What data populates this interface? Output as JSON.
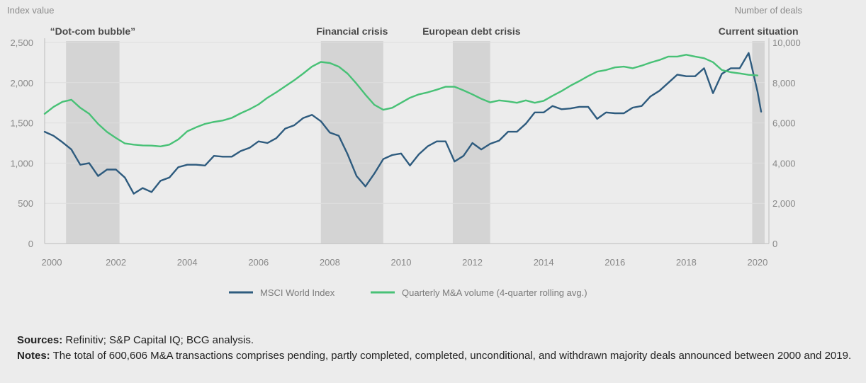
{
  "chart_data": {
    "type": "line",
    "left_axis_title": "Index value",
    "right_axis_title": "Number of deals",
    "x_range": [
      2000,
      2020.2
    ],
    "x_ticks": [
      2000,
      2002,
      2004,
      2006,
      2008,
      2010,
      2012,
      2014,
      2016,
      2018,
      2020
    ],
    "y_left": {
      "range": [
        0,
        2500
      ],
      "ticks": [
        0,
        500,
        1000,
        1500,
        2000,
        2500
      ],
      "tick_labels": [
        "0",
        "500",
        "1,000",
        "1,500",
        "2,000",
        "2,500"
      ]
    },
    "y_right": {
      "range": [
        0,
        10000
      ],
      "ticks": [
        0,
        2000,
        4000,
        6000,
        8000,
        10000
      ],
      "tick_labels": [
        "0",
        "2,000",
        "4,000",
        "6,000",
        "8,000",
        "10,000"
      ]
    },
    "grid": "horizontal",
    "legend_position": "bottom-center",
    "shaded_periods": [
      {
        "label": "“Dot-com bubble”",
        "start": 2000.6,
        "end": 2002.1
      },
      {
        "label": "Financial crisis",
        "start": 2007.75,
        "end": 2009.5
      },
      {
        "label": "European debt crisis",
        "start": 2011.45,
        "end": 2012.5
      },
      {
        "label": "Current situation",
        "start": 2019.85,
        "end": 2020.2
      }
    ],
    "series": [
      {
        "name": "MSCI World Index",
        "axis": "left",
        "color": "#2e5b7e",
        "x": [
          2000.0,
          2000.25,
          2000.5,
          2000.75,
          2001.0,
          2001.25,
          2001.5,
          2001.75,
          2002.0,
          2002.25,
          2002.5,
          2002.75,
          2003.0,
          2003.25,
          2003.5,
          2003.75,
          2004.0,
          2004.25,
          2004.5,
          2004.75,
          2005.0,
          2005.25,
          2005.5,
          2005.75,
          2006.0,
          2006.25,
          2006.5,
          2006.75,
          2007.0,
          2007.25,
          2007.5,
          2007.75,
          2008.0,
          2008.25,
          2008.5,
          2008.75,
          2009.0,
          2009.25,
          2009.5,
          2009.75,
          2010.0,
          2010.25,
          2010.5,
          2010.75,
          2011.0,
          2011.25,
          2011.5,
          2011.75,
          2012.0,
          2012.25,
          2012.5,
          2012.75,
          2013.0,
          2013.25,
          2013.5,
          2013.75,
          2014.0,
          2014.25,
          2014.5,
          2014.75,
          2015.0,
          2015.25,
          2015.5,
          2015.75,
          2016.0,
          2016.25,
          2016.5,
          2016.75,
          2017.0,
          2017.25,
          2017.5,
          2017.75,
          2018.0,
          2018.25,
          2018.5,
          2018.75,
          2019.0,
          2019.25,
          2019.5,
          2019.75,
          2020.0,
          2020.1
        ],
        "values": [
          1390,
          1340,
          1260,
          1170,
          980,
          1000,
          840,
          920,
          920,
          820,
          620,
          690,
          640,
          780,
          820,
          950,
          980,
          980,
          970,
          1090,
          1080,
          1080,
          1150,
          1190,
          1270,
          1250,
          1310,
          1430,
          1470,
          1560,
          1600,
          1520,
          1380,
          1340,
          1110,
          840,
          710,
          870,
          1050,
          1100,
          1120,
          970,
          1110,
          1210,
          1270,
          1270,
          1020,
          1090,
          1250,
          1170,
          1240,
          1280,
          1390,
          1390,
          1490,
          1630,
          1630,
          1710,
          1670,
          1680,
          1700,
          1700,
          1550,
          1630,
          1620,
          1620,
          1690,
          1710,
          1830,
          1900,
          2000,
          2100,
          2080,
          2080,
          2180,
          1870,
          2110,
          2180,
          2180,
          2370,
          1890,
          1640
        ]
      },
      {
        "name": "Quarterly M&A volume (4-quarter rolling avg.)",
        "axis": "right",
        "color": "#48c176",
        "x": [
          2000.0,
          2000.25,
          2000.5,
          2000.75,
          2001.0,
          2001.25,
          2001.5,
          2001.75,
          2002.0,
          2002.25,
          2002.5,
          2002.75,
          2003.0,
          2003.25,
          2003.5,
          2003.75,
          2004.0,
          2004.25,
          2004.5,
          2004.75,
          2005.0,
          2005.25,
          2005.5,
          2005.75,
          2006.0,
          2006.25,
          2006.5,
          2006.75,
          2007.0,
          2007.25,
          2007.5,
          2007.75,
          2008.0,
          2008.25,
          2008.5,
          2008.75,
          2009.0,
          2009.25,
          2009.5,
          2009.75,
          2010.0,
          2010.25,
          2010.5,
          2010.75,
          2011.0,
          2011.25,
          2011.5,
          2011.75,
          2012.0,
          2012.25,
          2012.5,
          2012.75,
          2013.0,
          2013.25,
          2013.5,
          2013.75,
          2014.0,
          2014.25,
          2014.5,
          2014.75,
          2015.0,
          2015.25,
          2015.5,
          2015.75,
          2016.0,
          2016.25,
          2016.5,
          2016.75,
          2017.0,
          2017.25,
          2017.5,
          2017.75,
          2018.0,
          2018.25,
          2018.5,
          2018.75,
          2019.0,
          2019.25,
          2019.5,
          2019.75,
          2020.0
        ],
        "values": [
          6450,
          6800,
          7050,
          7150,
          6750,
          6450,
          5950,
          5550,
          5250,
          4980,
          4920,
          4880,
          4870,
          4830,
          4920,
          5180,
          5580,
          5780,
          5950,
          6050,
          6120,
          6250,
          6480,
          6680,
          6920,
          7250,
          7520,
          7820,
          8120,
          8450,
          8800,
          9030,
          8980,
          8800,
          8450,
          7950,
          7400,
          6900,
          6650,
          6750,
          7000,
          7250,
          7420,
          7520,
          7650,
          7800,
          7800,
          7620,
          7420,
          7200,
          7020,
          7120,
          7070,
          7000,
          7120,
          7000,
          7100,
          7350,
          7580,
          7850,
          8080,
          8330,
          8550,
          8630,
          8760,
          8800,
          8720,
          8850,
          9000,
          9130,
          9300,
          9300,
          9390,
          9300,
          9220,
          9020,
          8630,
          8520,
          8460,
          8390,
          8360
        ]
      }
    ]
  },
  "footer": {
    "sources_label": "Sources:",
    "sources_text": " Refinitiv; S&P Capital IQ; BCG analysis.",
    "notes_label": "Notes:",
    "notes_text": " The total of 600,606 M&A transactions comprises pending, partly completed, completed, unconditional, and withdrawn majority deals announced between 2000 and 2019."
  }
}
